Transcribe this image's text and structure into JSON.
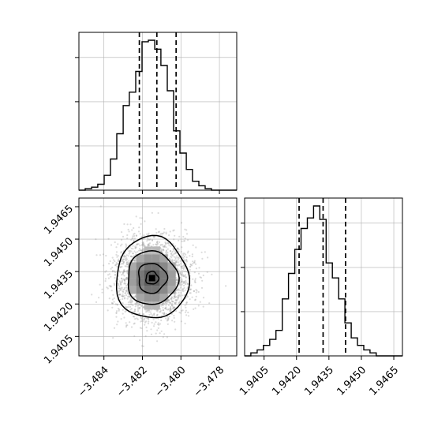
{
  "chart_data": {
    "type": "corner",
    "variables": [
      "x0",
      "x1"
    ],
    "axis_ticks": {
      "x0": {
        "values": [
          -3.484,
          -3.482,
          -3.48,
          -3.478
        ],
        "labels": [
          "−3.484",
          "−3.482",
          "−3.480",
          "−3.478"
        ],
        "range": [
          -3.4853,
          -3.4771
        ]
      },
      "x1": {
        "values": [
          1.9405,
          1.942,
          1.9435,
          1.945,
          1.9465
        ],
        "labels": [
          "1.9405",
          "1.9420",
          "1.9435",
          "1.9450",
          "1.9465"
        ],
        "range": [
          1.9396,
          1.9469
        ]
      }
    },
    "panels": [
      {
        "position": "top-left",
        "type": "histogram",
        "variable": "x0",
        "bin_edges": [
          -3.4853,
          -3.48497,
          -3.48464,
          -3.48432,
          -3.48399,
          -3.48366,
          -3.48333,
          -3.483,
          -3.48268,
          -3.48235,
          -3.48202,
          -3.48169,
          -3.48136,
          -3.48104,
          -3.48071,
          -3.48038,
          -3.48005,
          -3.47972,
          -3.4794,
          -3.47907,
          -3.47874,
          -3.47841,
          -3.47808,
          -3.47776,
          -3.47743,
          -3.4771
        ],
        "counts": [
          0,
          1,
          2,
          4,
          10,
          21,
          38,
          57,
          66,
          80,
          100,
          101,
          95,
          84,
          67,
          40,
          25,
          14,
          6,
          3,
          1,
          0,
          0,
          0,
          0
        ],
        "quantiles": [
          -3.48216,
          -3.48125,
          -3.48025
        ],
        "yticks_relative": [
          0.295,
          0.59,
          0.885
        ],
        "grid": true
      },
      {
        "position": "bottom-left",
        "type": "2d-density",
        "x": "x0",
        "y": "x1",
        "grid": true
      },
      {
        "position": "bottom-right",
        "type": "histogram",
        "variable": "x1",
        "bin_edges": [
          1.9396,
          1.93989,
          1.94018,
          1.94047,
          1.94076,
          1.94105,
          1.94134,
          1.94163,
          1.94192,
          1.94221,
          1.9425,
          1.94279,
          1.94308,
          1.94337,
          1.94366,
          1.94395,
          1.94424,
          1.94453,
          1.94482,
          1.94511,
          1.9454,
          1.94569,
          1.94598,
          1.94627,
          1.94656,
          1.9469
        ],
        "counts": [
          0,
          2,
          4,
          7,
          11,
          17,
          38,
          55,
          71,
          85,
          92,
          100,
          91,
          62,
          52,
          38,
          22,
          12,
          7,
          4,
          2,
          0,
          0,
          0,
          0
        ],
        "quantiles": [
          1.94212,
          1.94323,
          1.94427
        ],
        "yticks_relative": [
          0.295,
          0.59,
          0.885
        ],
        "grid": true
      }
    ]
  }
}
